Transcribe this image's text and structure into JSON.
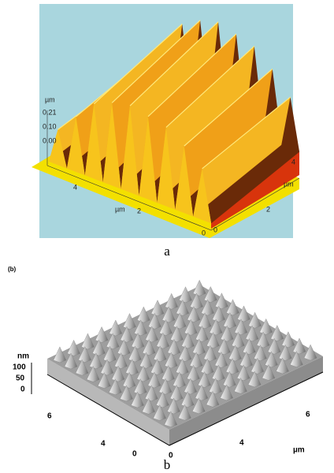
{
  "panel_a": {
    "z_unit": "µm",
    "z_ticks": [
      "0.21",
      "0.10",
      "0.00"
    ],
    "x_ticks": [
      "4",
      "2",
      "0"
    ],
    "x_unit": "µm",
    "y_ticks": [
      "0",
      "2",
      "4"
    ],
    "y_unit": "µm",
    "caption": "a"
  },
  "panel_b": {
    "tag": "(b)",
    "z_unit": "nm",
    "z_ticks": [
      "100",
      "50",
      "0"
    ],
    "x_ticks": [
      "6",
      "4",
      "0"
    ],
    "x_unit": "µm",
    "y_ticks": [
      "0",
      "4",
      "6"
    ],
    "caption": "b"
  }
}
